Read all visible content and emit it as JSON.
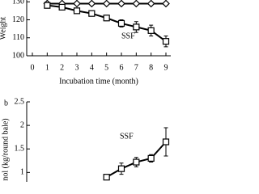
{
  "chart_data": [
    {
      "type": "line",
      "y_label": "Weight",
      "x_label": "Incubation time (month)",
      "xlim": [
        0,
        9
      ],
      "xticks": [
        0,
        1,
        2,
        3,
        4,
        5,
        6,
        7,
        8,
        9
      ],
      "ylim": [
        100,
        131
      ],
      "yticks": [
        100,
        110,
        120,
        130
      ],
      "annotation": "SSF",
      "series": [
        {
          "marker": "diamond",
          "color": "#000000",
          "x": [
            1,
            2,
            3,
            4,
            5,
            6,
            7,
            8,
            9
          ],
          "values": [
            129,
            129,
            129,
            129,
            129,
            129,
            129,
            129,
            129
          ]
        },
        {
          "marker": "square",
          "color": "#000000",
          "x": [
            1,
            2,
            3,
            4,
            5,
            6,
            7,
            8,
            9
          ],
          "values": [
            128,
            127,
            125,
            123.5,
            121,
            118,
            116,
            114,
            108
          ],
          "errors": [
            0.5,
            1,
            1,
            1,
            1.5,
            2,
            3,
            3,
            3
          ]
        }
      ]
    },
    {
      "type": "line",
      "panel": "b",
      "y_label": "nol (kg/round bale)",
      "xlim": [
        0,
        9
      ],
      "ylim": [
        0.8,
        2.5
      ],
      "yticks": [
        1,
        1.5,
        2,
        2.5
      ],
      "annotation": "SSF",
      "series": [
        {
          "marker": "square",
          "color": "#000000",
          "x": [
            5,
            6,
            7,
            8,
            9
          ],
          "values": [
            0.9,
            1.08,
            1.22,
            1.3,
            1.65
          ],
          "errors": [
            0.05,
            0.12,
            0.1,
            0.08,
            0.3
          ]
        }
      ]
    }
  ]
}
